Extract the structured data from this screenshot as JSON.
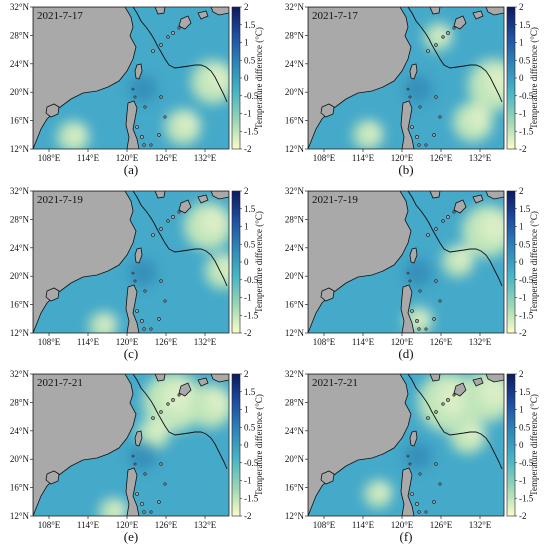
{
  "colors": {
    "ocean": "#45a9c9",
    "land": "#a9a9a9",
    "coast": "#111111",
    "track": "#111111"
  },
  "colorbar": {
    "title": "Temperature difference (°C)",
    "ticks": [
      "2",
      "1.5",
      "1",
      "0.5",
      "0",
      "-0.5",
      "-1",
      "-1.5",
      "-2"
    ],
    "range": [
      -2,
      2
    ],
    "stops": [
      "#0c1a5e",
      "#1f4da0",
      "#2f86b8",
      "#48b5c5",
      "#9bd6b5",
      "#fbfdc8"
    ]
  },
  "axes": {
    "lat_ticks": [
      "32°N",
      "28°N",
      "24°N",
      "20°N",
      "16°N",
      "12°N"
    ],
    "lon_ticks": [
      "108°E",
      "114°E",
      "120°E",
      "126°E",
      "132°E"
    ]
  },
  "panels": [
    {
      "date": "2021-7-17",
      "caption": "(a)"
    },
    {
      "date": "2021-7-17",
      "caption": "(b)"
    },
    {
      "date": "2021-7-19",
      "caption": "(c)"
    },
    {
      "date": "2021-7-19",
      "caption": "(d)"
    },
    {
      "date": "2021-7-21",
      "caption": "(e)"
    },
    {
      "date": "2021-7-21",
      "caption": "(f)"
    }
  ]
}
